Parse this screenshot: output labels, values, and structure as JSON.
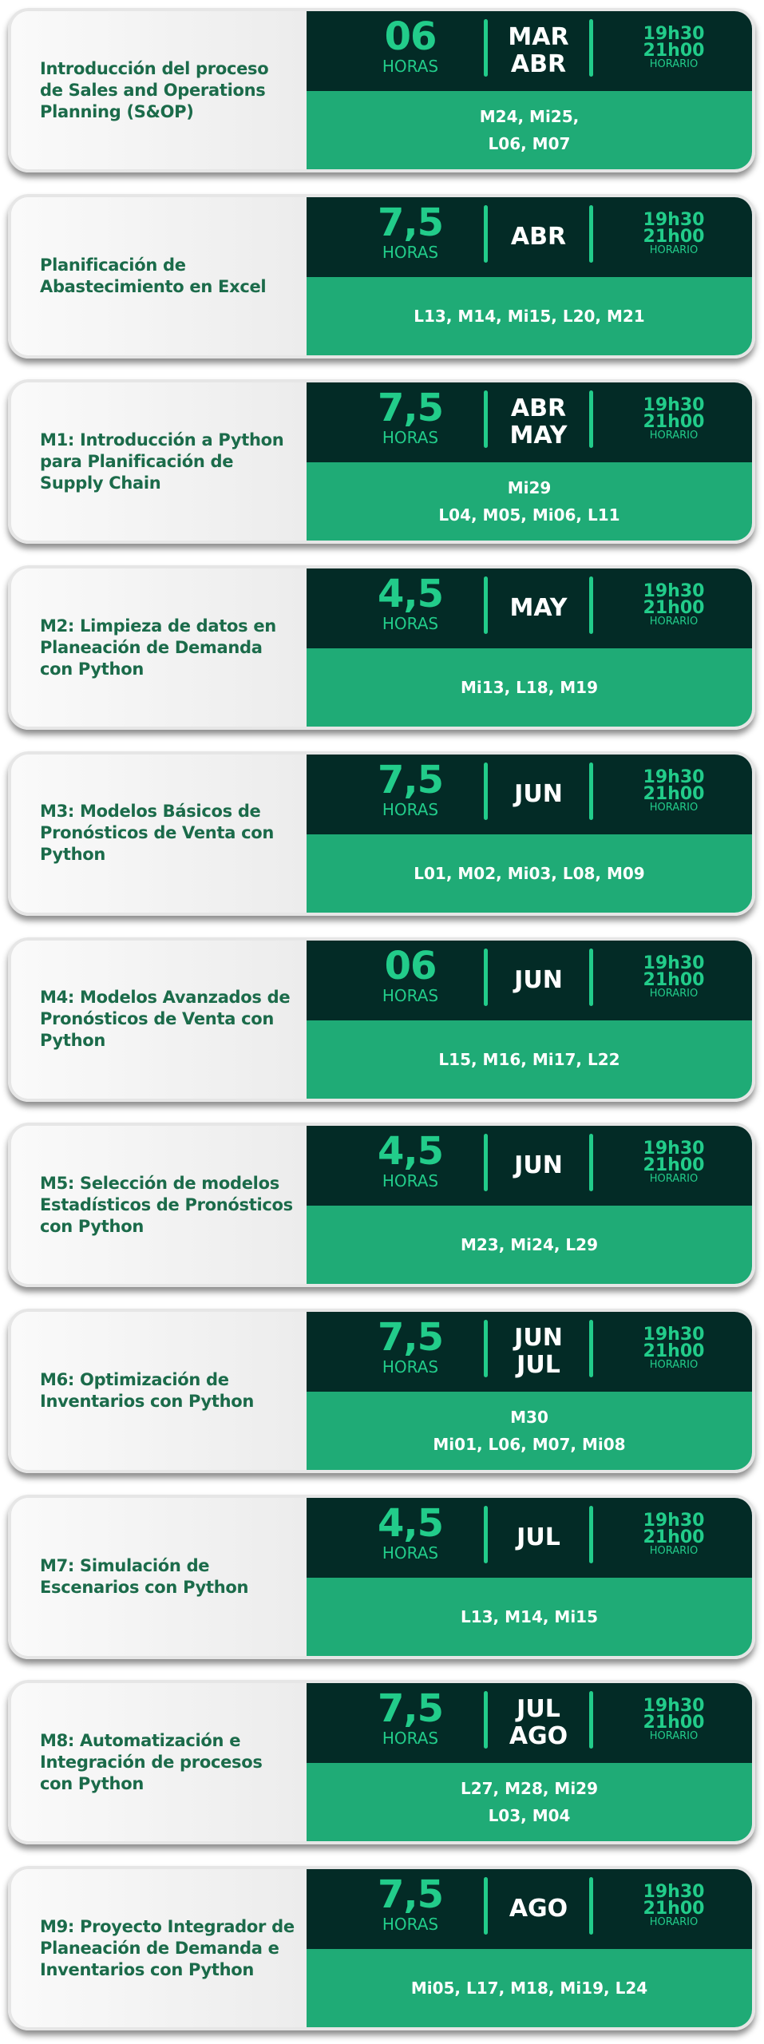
{
  "colors": {
    "dark": "#032b26",
    "green": "#1fab76",
    "accent": "#22cc8a",
    "title": "#1b6b4a"
  },
  "hours_label": "HORAS",
  "schedule_label": "HORARIO",
  "time_start": "19h30",
  "time_end": "21h00",
  "courses": [
    {
      "title": "Introducción del proceso de Sales and Operations Planning (S&OP)",
      "hours": "06",
      "months": [
        "MAR",
        "ABR"
      ],
      "dates": "M24, Mi25,\nL06, M07"
    },
    {
      "title": "Planificación de Abastecimiento en Excel",
      "hours": "7,5",
      "months": [
        "ABR"
      ],
      "dates": "L13, M14, Mi15, L20, M21"
    },
    {
      "title": "M1: Introducción a Python para Planificación de Supply Chain",
      "hours": "7,5",
      "months": [
        "ABR",
        "MAY"
      ],
      "dates": "Mi29\nL04, M05, Mi06, L11"
    },
    {
      "title": "M2: Limpieza de datos en Planeación de Demanda con Python",
      "hours": "4,5",
      "months": [
        "MAY"
      ],
      "dates": "Mi13, L18, M19"
    },
    {
      "title": "M3: Modelos Básicos de Pronósticos de Venta con Python",
      "hours": "7,5",
      "months": [
        "JUN"
      ],
      "dates": "L01, M02, Mi03, L08, M09"
    },
    {
      "title": "M4: Modelos Avanzados de Pronósticos de Venta con Python",
      "hours": "06",
      "months": [
        "JUN"
      ],
      "dates": "L15, M16, Mi17, L22"
    },
    {
      "title": "M5: Selección de modelos Estadísticos de Pronósticos con Python",
      "hours": "4,5",
      "months": [
        "JUN"
      ],
      "dates": "M23, Mi24, L29"
    },
    {
      "title": "M6: Optimización de Inventarios con Python",
      "hours": "7,5",
      "months": [
        "JUN",
        "JUL"
      ],
      "dates": "M30\nMi01, L06, M07, Mi08"
    },
    {
      "title": "M7: Simulación de Escenarios con Python",
      "hours": "4,5",
      "months": [
        "JUL"
      ],
      "dates": "L13, M14, Mi15"
    },
    {
      "title": "M8: Automatización e Integración de procesos con Python",
      "hours": "7,5",
      "months": [
        "JUL",
        "AGO"
      ],
      "dates": "L27, M28, Mi29\nL03, M04"
    },
    {
      "title": "M9: Proyecto Integrador de Planeación de Demanda e Inventarios con Python",
      "hours": "7,5",
      "months": [
        "AGO"
      ],
      "dates": "Mi05, L17, M18, Mi19, L24"
    }
  ]
}
